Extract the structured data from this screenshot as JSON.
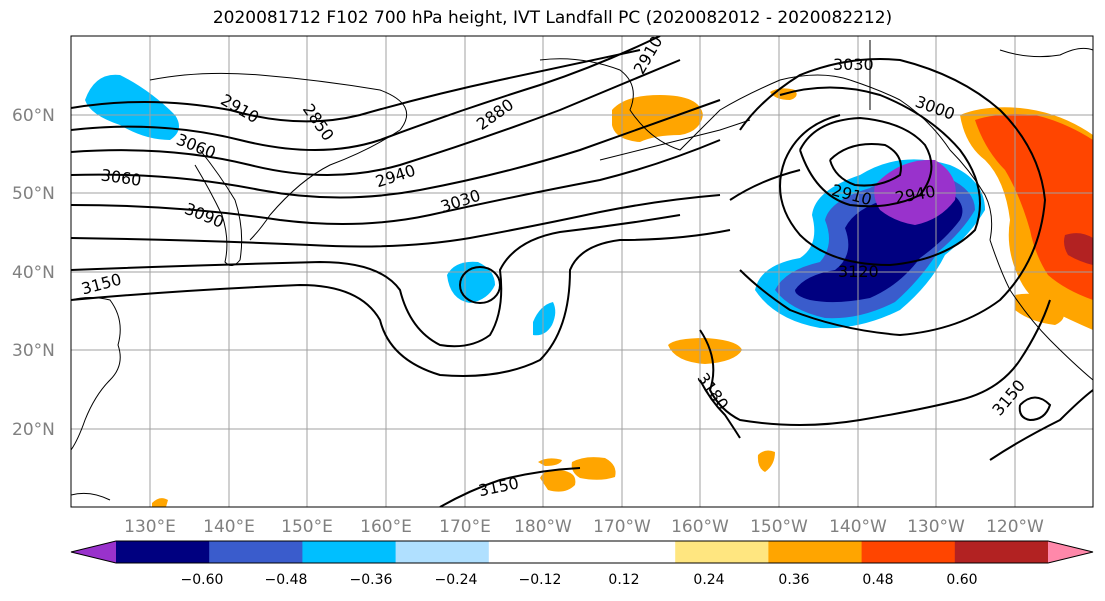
{
  "title": "2020081712 F102 700 hPa height, IVT Landfall PC (2020082012 - 2020082212)",
  "map": {
    "lat_labels": [
      "60°N",
      "50°N",
      "40°N",
      "30°N",
      "20°N"
    ],
    "lon_labels": [
      "130°E",
      "140°E",
      "150°E",
      "160°E",
      "170°E",
      "180°W",
      "170°W",
      "160°W",
      "150°W",
      "140°W",
      "130°W",
      "120°W"
    ],
    "contour_labels": [
      "3030",
      "2910",
      "2850",
      "2880",
      "2910",
      "3000",
      "3060",
      "3060",
      "2940",
      "3030",
      "3090",
      "2910",
      "2940",
      "3150",
      "3120",
      "3180",
      "3150",
      "3150"
    ],
    "shading_colors": {
      "negative_strongest": "#9932cc",
      "negative_strong": "#000080",
      "negative_moderate": "#3a5ccc",
      "negative_weak": "#00bfff",
      "positive_weak": "#ffa500",
      "positive_moderate": "#ff4500",
      "positive_strong": "#b22222"
    }
  },
  "colorbar": {
    "colors": [
      "#9932cc",
      "#000080",
      "#3a5ccc",
      "#00bfff",
      "#b0e0ff",
      "#ffffff",
      "#ffffff",
      "#ffe680",
      "#ffa500",
      "#ff4500",
      "#b22222",
      "#ff88aa"
    ],
    "tick_labels": [
      "−0.60",
      "−0.48",
      "−0.36",
      "−0.24",
      "−0.12",
      "0.12",
      "0.24",
      "0.36",
      "0.48",
      "0.60"
    ]
  }
}
